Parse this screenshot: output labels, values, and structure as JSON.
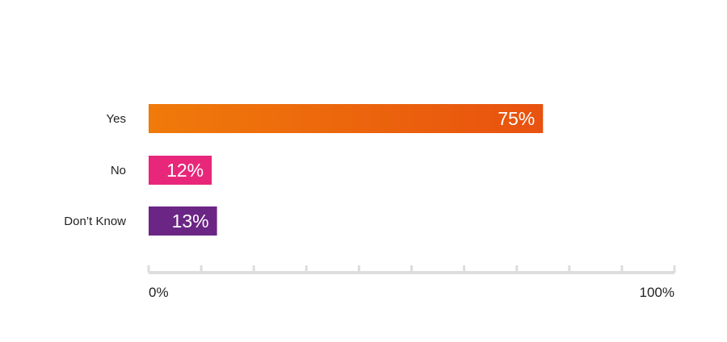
{
  "chart_data": {
    "type": "bar",
    "orientation": "horizontal",
    "categories": [
      "Yes",
      "No",
      "Don’t Know"
    ],
    "values": [
      75,
      12,
      13
    ],
    "data_labels": [
      "75%",
      "12%",
      "13%"
    ],
    "colors": [
      [
        "#F07A0A",
        "#E8520F"
      ],
      [
        "#E8277A",
        "#E8277A"
      ],
      [
        "#6B2585",
        "#6B2585"
      ]
    ],
    "xlim": [
      0,
      100
    ],
    "x_tick_labels": [
      "0%",
      "100%"
    ],
    "minor_ticks": 10,
    "grid": false,
    "axis_color": "#DDDDDD",
    "title": "",
    "xlabel": "",
    "ylabel": ""
  }
}
